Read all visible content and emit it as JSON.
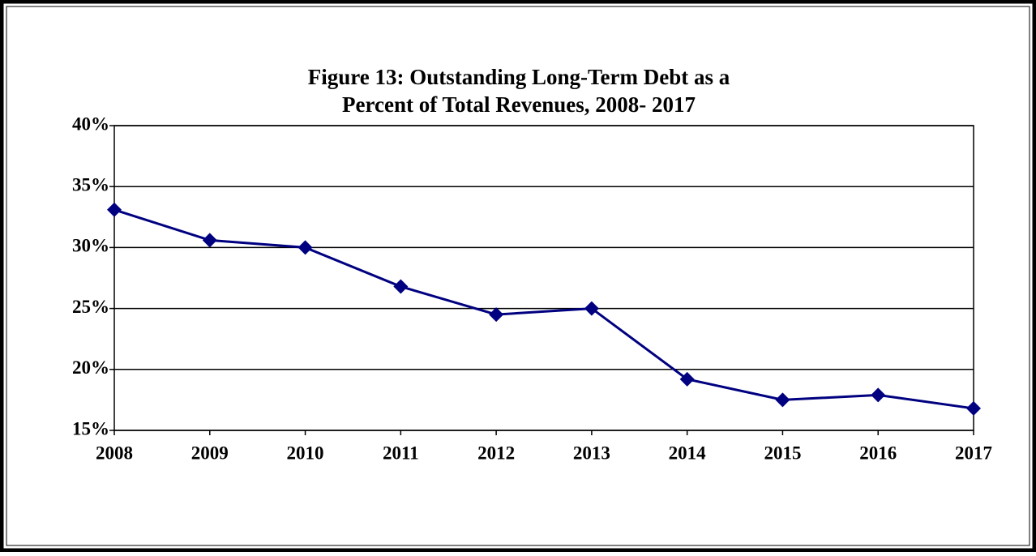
{
  "chart_data": {
    "type": "line",
    "title": [
      "Figure 13:  Outstanding Long-Term Debt as a",
      "Percent of Total Revenues, 2008- 2017"
    ],
    "categories": [
      "2008",
      "2009",
      "2010",
      "2011",
      "2012",
      "2013",
      "2014",
      "2015",
      "2016",
      "2017"
    ],
    "series": [
      {
        "name": "Outstanding Long-Term Debt as a Percent of Total Revenues",
        "color": "#000080",
        "values": [
          33.1,
          30.6,
          30.0,
          26.8,
          24.5,
          25.0,
          19.2,
          17.5,
          17.9,
          16.8
        ]
      }
    ],
    "ylim": [
      15,
      40
    ],
    "yticks": [
      {
        "value": 15,
        "label": "15%"
      },
      {
        "value": 20,
        "label": "20%"
      },
      {
        "value": 25,
        "label": "25%"
      },
      {
        "value": 30,
        "label": "30%"
      },
      {
        "value": 35,
        "label": "35%"
      },
      {
        "value": 40,
        "label": "40%"
      }
    ],
    "grid": true,
    "legend": false
  }
}
